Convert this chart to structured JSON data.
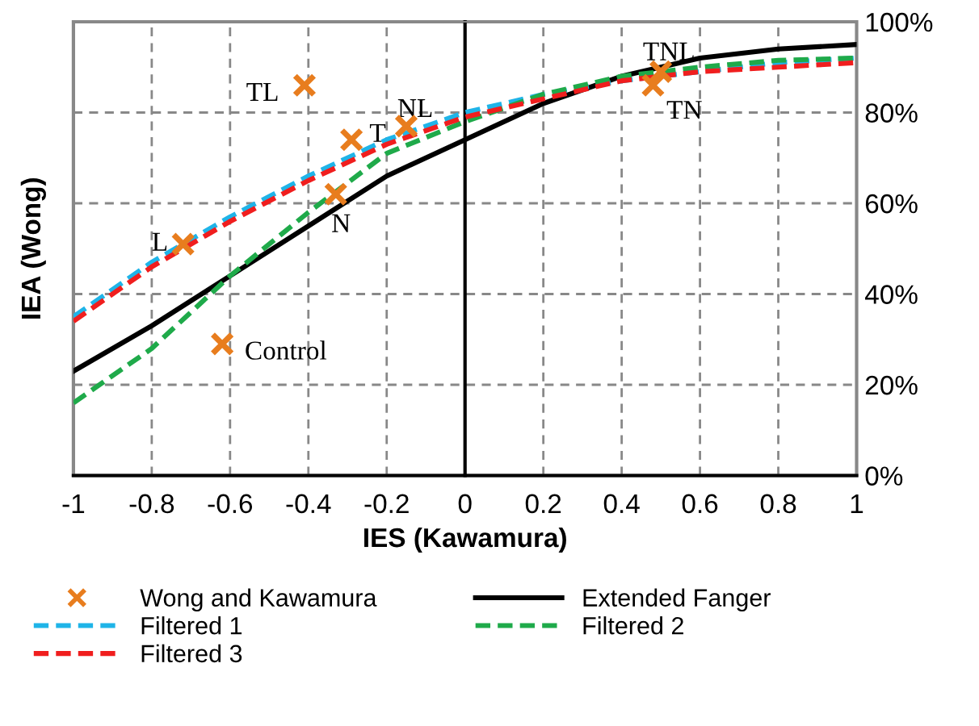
{
  "chart_data": {
    "type": "line",
    "xlabel": "IES (Kawamura)",
    "ylabel": "IEA (Wong)",
    "xlim": [
      -1,
      1
    ],
    "ylim": [
      0,
      100
    ],
    "xticks": [
      -1,
      -0.8,
      -0.6,
      -0.4,
      -0.2,
      0,
      0.2,
      0.4,
      0.6,
      0.8,
      1
    ],
    "yticks": [
      {
        "value": 0,
        "label": "0%"
      },
      {
        "value": 20,
        "label": "20%"
      },
      {
        "value": 40,
        "label": "40%"
      },
      {
        "value": 60,
        "label": "60%"
      },
      {
        "value": 80,
        "label": "80%"
      },
      {
        "value": 100,
        "label": "100%"
      }
    ],
    "grid": true,
    "legend": "bottom",
    "series": [
      {
        "name": "Wong and Kawamura",
        "type": "scatter",
        "marker": "cross",
        "color": "#e87d1e",
        "x": [
          -0.41,
          -0.29,
          -0.15,
          -0.33,
          -0.72,
          -0.62,
          0.5,
          0.48
        ],
        "values": [
          86,
          74,
          77,
          62,
          51,
          29,
          89,
          86
        ]
      },
      {
        "name": "Extended Fanger",
        "line_style": "solid",
        "color": "#000000",
        "x": [
          -1,
          -0.8,
          -0.6,
          -0.4,
          -0.2,
          0,
          0.2,
          0.4,
          0.6,
          0.8,
          1
        ],
        "values": [
          23,
          33,
          44,
          55,
          66,
          74,
          82,
          88,
          92,
          94,
          95
        ]
      },
      {
        "name": "Filtered 1",
        "line_style": "dashed",
        "color": "#1fb4e8",
        "x": [
          -1,
          -0.8,
          -0.6,
          -0.4,
          -0.2,
          0,
          0.2,
          0.4,
          0.6,
          0.8,
          1
        ],
        "values": [
          35,
          47,
          57,
          66,
          74,
          80,
          84,
          87,
          89,
          91,
          92
        ]
      },
      {
        "name": "Filtered 2",
        "line_style": "dashed",
        "color": "#1faa4a",
        "x": [
          -1,
          -0.8,
          -0.6,
          -0.4,
          -0.2,
          0,
          0.2,
          0.4,
          0.6,
          0.8,
          1
        ],
        "values": [
          16,
          28,
          44,
          58,
          71,
          78,
          84,
          88,
          90,
          91.5,
          92
        ]
      },
      {
        "name": "Filtered 3",
        "line_style": "dashed",
        "color": "#f01e1e",
        "x": [
          -1,
          -0.8,
          -0.6,
          -0.4,
          -0.2,
          0,
          0.2,
          0.4,
          0.6,
          0.8,
          1
        ],
        "values": [
          34,
          46,
          56,
          65,
          73,
          79,
          83,
          87,
          89,
          90,
          91
        ]
      }
    ],
    "annotations": [
      {
        "text": "TL",
        "x": -0.41,
        "y": 86
      },
      {
        "text": "T",
        "x": -0.29,
        "y": 74
      },
      {
        "text": "NL",
        "x": -0.15,
        "y": 77
      },
      {
        "text": "N",
        "x": -0.33,
        "y": 62
      },
      {
        "text": "L",
        "x": -0.72,
        "y": 51
      },
      {
        "text": "Control",
        "x": -0.62,
        "y": 29
      },
      {
        "text": "TNL",
        "x": 0.5,
        "y": 89
      },
      {
        "text": "TN",
        "x": 0.48,
        "y": 86
      }
    ]
  }
}
